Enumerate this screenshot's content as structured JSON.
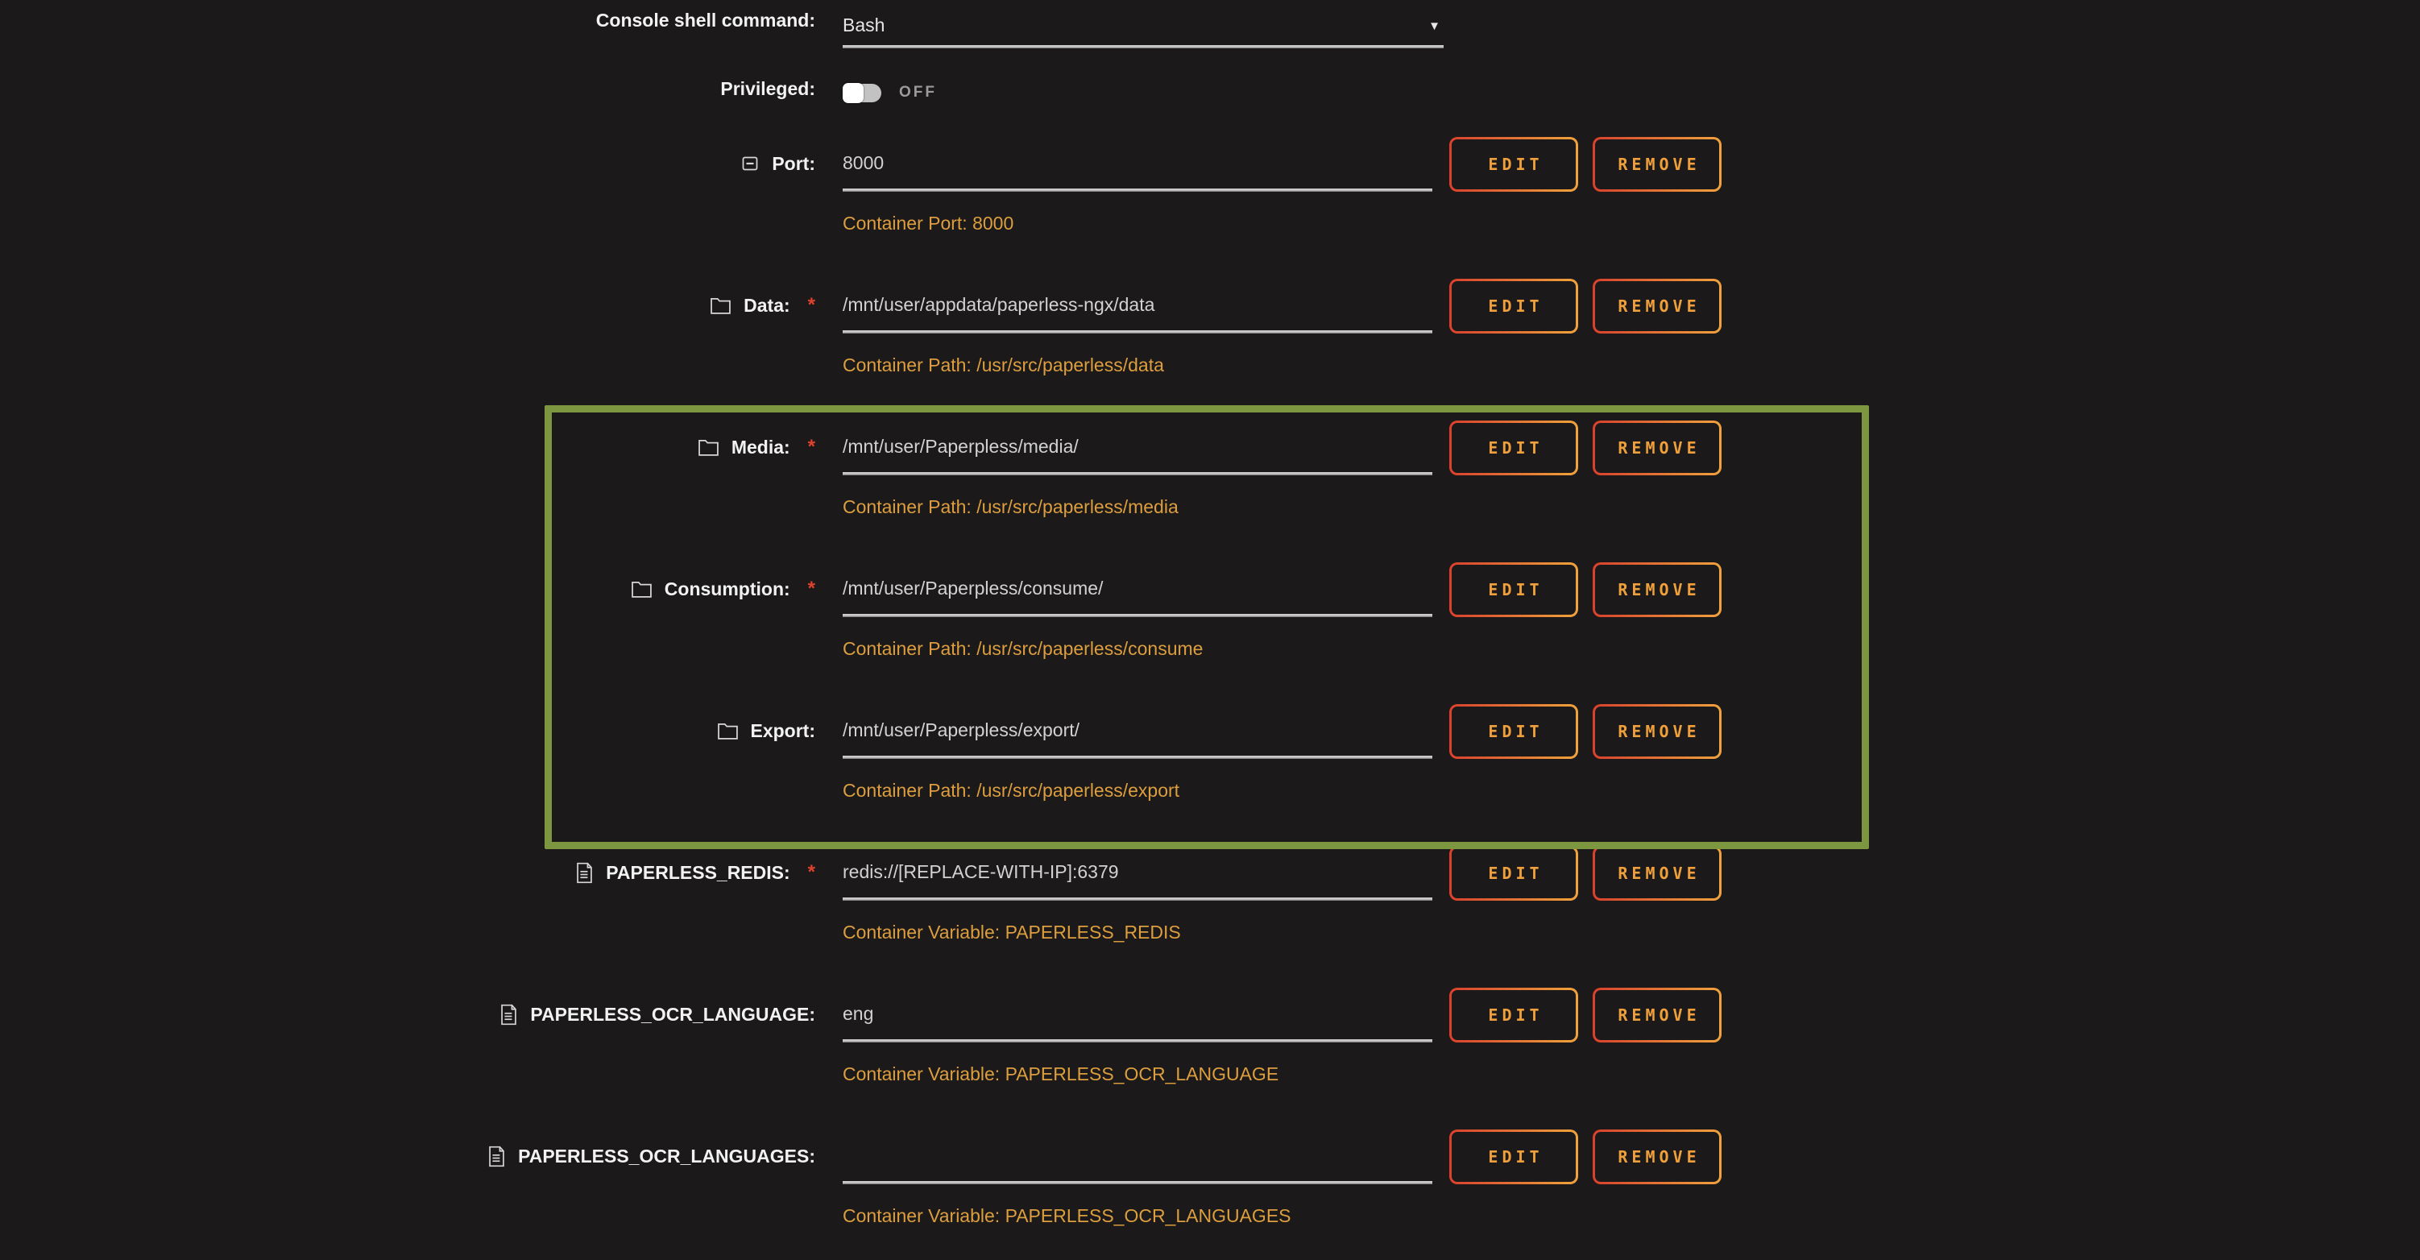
{
  "colors": {
    "background": "#1b1919",
    "label_text": "#f2f2f2",
    "value_text": "#d2d2d2",
    "hint_orange": "#dc9e3e",
    "required_red": "#e0432c",
    "button_text_orange": "#efa03b",
    "button_border_red": "#d9412e",
    "button_border_orange": "#f0a33c",
    "highlight_green": "#7c9740",
    "toggle_track": "#c2c2c2",
    "toggle_off_text": "#9b9b9b"
  },
  "required_marker": "*",
  "buttons": {
    "edit": "EDIT",
    "remove": "REMOVE"
  },
  "select_row": {
    "label": "Console shell command:",
    "value": "Bash",
    "arrow_glyph": "▼"
  },
  "toggle_row": {
    "label": "Privileged:",
    "state": "OFF"
  },
  "config_rows": [
    {
      "key": "port",
      "icon": "port-icon",
      "label": "Port:",
      "required": false,
      "value": "8000",
      "hint": "Container Port: 8000"
    },
    {
      "key": "data",
      "icon": "folder-icon",
      "label": "Data:",
      "required": true,
      "value": "/mnt/user/appdata/paperless-ngx/data",
      "hint": "Container Path: /usr/src/paperless/data"
    },
    {
      "key": "media",
      "icon": "folder-icon",
      "label": "Media:",
      "required": true,
      "value": "/mnt/user/Paperpless/media/",
      "hint": "Container Path: /usr/src/paperless/media",
      "highlighted": true
    },
    {
      "key": "consumption",
      "icon": "folder-icon",
      "label": "Consumption:",
      "required": true,
      "value": "/mnt/user/Paperpless/consume/",
      "hint": "Container Path: /usr/src/paperless/consume",
      "highlighted": true
    },
    {
      "key": "export",
      "icon": "folder-icon",
      "label": "Export:",
      "required": false,
      "value": "/mnt/user/Paperpless/export/",
      "hint": "Container Path: /usr/src/paperless/export",
      "highlighted": true
    },
    {
      "key": "paperless-redis",
      "icon": "file-icon",
      "label": "PAPERLESS_REDIS:",
      "required": true,
      "value": "redis://[REPLACE-WITH-IP]:6379",
      "hint": "Container Variable: PAPERLESS_REDIS"
    },
    {
      "key": "paperless-ocr-language",
      "icon": "file-icon",
      "label": "PAPERLESS_OCR_LANGUAGE:",
      "required": false,
      "value": "eng",
      "hint": "Container Variable: PAPERLESS_OCR_LANGUAGE"
    },
    {
      "key": "paperless-ocr-languages",
      "icon": "file-icon",
      "label": "PAPERLESS_OCR_LANGUAGES:",
      "required": false,
      "value": "",
      "hint": "Container Variable: PAPERLESS_OCR_LANGUAGES"
    }
  ]
}
